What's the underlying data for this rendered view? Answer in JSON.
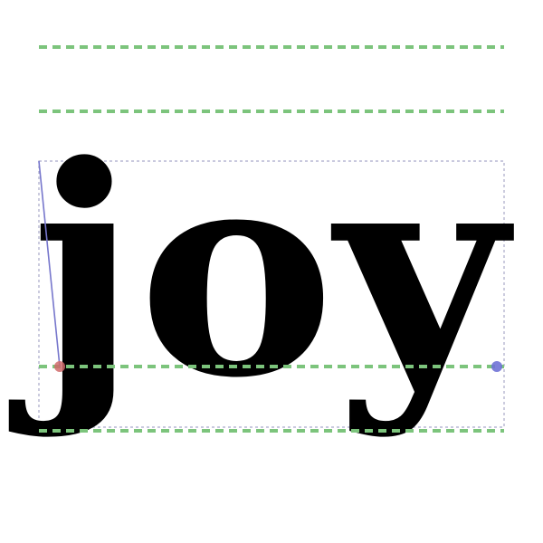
{
  "diagram": {
    "word": "joy",
    "colors": {
      "background": "#ffffff",
      "glyph": "#000000",
      "metric_line": "#7cc47c",
      "bbox_line": "#a9a9c9",
      "pen_line": "#7777cc",
      "origin_dot": "#d06b6b",
      "advance_dot": "#6f72d6"
    }
  }
}
